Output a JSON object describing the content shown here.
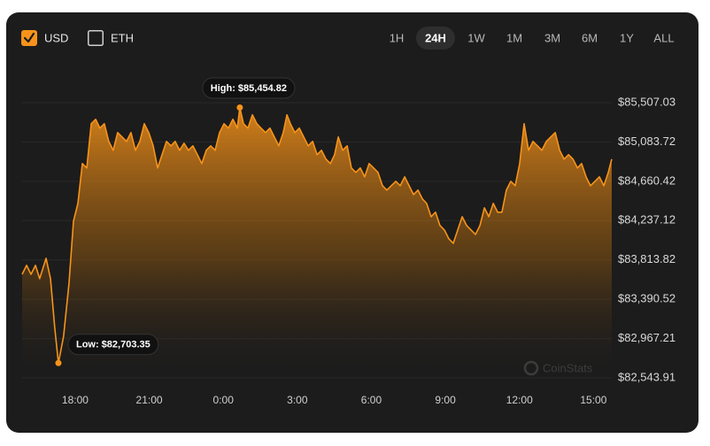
{
  "toggles": [
    {
      "label": "USD",
      "checked": true
    },
    {
      "label": "ETH",
      "checked": false
    }
  ],
  "ranges": [
    "1H",
    "24H",
    "1W",
    "1M",
    "3M",
    "6M",
    "1Y",
    "ALL"
  ],
  "active_range": 1,
  "watermark": "CoinStats",
  "chart_data": {
    "type": "area",
    "color": "#f7931a",
    "grid": true,
    "x": [
      15.85,
      16.03,
      16.21,
      16.39,
      16.56,
      16.82,
      17.0,
      17.17,
      17.32,
      17.53,
      17.75,
      17.93,
      18.11,
      18.29,
      18.47,
      18.65,
      18.83,
      19.0,
      19.18,
      19.36,
      19.54,
      19.72,
      19.9,
      20.08,
      20.26,
      20.44,
      20.62,
      20.8,
      20.98,
      21.16,
      21.34,
      21.52,
      21.7,
      21.88,
      22.05,
      22.23,
      22.41,
      22.59,
      22.77,
      22.95,
      23.13,
      23.31,
      23.49,
      23.67,
      23.85,
      24.03,
      24.21,
      24.39,
      24.57,
      24.67,
      24.82,
      25.0,
      25.18,
      25.36,
      25.53,
      25.71,
      25.89,
      26.07,
      26.25,
      26.43,
      26.58,
      26.72,
      26.9,
      27.08,
      27.26,
      27.44,
      27.62,
      27.8,
      27.98,
      28.16,
      28.34,
      28.51,
      28.66,
      28.84,
      29.02,
      29.19,
      29.37,
      29.55,
      29.73,
      29.91,
      30.09,
      30.27,
      30.45,
      30.63,
      30.81,
      30.99,
      31.17,
      31.35,
      31.53,
      31.71,
      31.89,
      32.07,
      32.24,
      32.42,
      32.6,
      32.78,
      32.96,
      33.14,
      33.32,
      33.5,
      33.68,
      33.86,
      34.04,
      34.22,
      34.4,
      34.58,
      34.76,
      34.94,
      35.12,
      35.29,
      35.47,
      35.65,
      35.83,
      36.01,
      36.19,
      36.37,
      36.55,
      36.73,
      36.91,
      37.09,
      37.27,
      37.45,
      37.63,
      37.81,
      37.99,
      38.17,
      38.35,
      38.52,
      38.7,
      38.88,
      39.06,
      39.24,
      39.42,
      39.6,
      39.74
    ],
    "values": [
      83659,
      83755,
      83659,
      83755,
      83612,
      83831,
      83612,
      83087,
      82703.35,
      82992,
      83564,
      84231,
      84422,
      84851,
      84804,
      85280,
      85328,
      85233,
      85280,
      85090,
      84994,
      85185,
      85137,
      85090,
      85185,
      84994,
      85090,
      85280,
      85185,
      85042,
      84804,
      84947,
      85090,
      85042,
      85090,
      84994,
      85070,
      84994,
      85042,
      84947,
      84851,
      84994,
      85042,
      84994,
      85185,
      85280,
      85233,
      85328,
      85233,
      85454.82,
      85280,
      85233,
      85376,
      85280,
      85233,
      85185,
      85233,
      85137,
      85042,
      85185,
      85376,
      85280,
      85185,
      85233,
      85137,
      85042,
      85090,
      84947,
      84994,
      84899,
      84851,
      84947,
      85137,
      84994,
      85042,
      84804,
      84756,
      84804,
      84708,
      84851,
      84804,
      84756,
      84613,
      84565,
      84613,
      84660,
      84613,
      84708,
      84613,
      84517,
      84565,
      84470,
      84422,
      84279,
      84327,
      84184,
      84136,
      84041,
      83993,
      84136,
      84279,
      84184,
      84136,
      84088,
      84184,
      84374,
      84279,
      84422,
      84327,
      84327,
      84565,
      84660,
      84613,
      84851,
      85280,
      84994,
      85090,
      85042,
      84994,
      85090,
      85137,
      85185,
      84994,
      84899,
      84947,
      84899,
      84804,
      84851,
      84708,
      84613,
      84660,
      84708,
      84613,
      84756,
      84899
    ],
    "xlim": [
      15.85,
      39.74
    ],
    "xticks": [
      {
        "value": 18,
        "label": "18:00"
      },
      {
        "value": 21,
        "label": "21:00"
      },
      {
        "value": 24,
        "label": "0:00"
      },
      {
        "value": 27,
        "label": "3:00"
      },
      {
        "value": 30,
        "label": "6:00"
      },
      {
        "value": 33,
        "label": "9:00"
      },
      {
        "value": 36,
        "label": "12:00"
      },
      {
        "value": 39,
        "label": "15:00"
      }
    ],
    "ylim": [
      82543.91,
      85507.03
    ],
    "yticks": [
      {
        "value": 85507.03,
        "label": "$85,507.03"
      },
      {
        "value": 85083.72,
        "label": "$85,083.72"
      },
      {
        "value": 84660.42,
        "label": "$84,660.42"
      },
      {
        "value": 84237.12,
        "label": "$84,237.12"
      },
      {
        "value": 83813.82,
        "label": "$83,813.82"
      },
      {
        "value": 83390.52,
        "label": "$83,390.52"
      },
      {
        "value": 82967.21,
        "label": "$82,967.21"
      },
      {
        "value": 82543.91,
        "label": "$82,543.91"
      }
    ],
    "annotations": [
      {
        "text": "High: $85,454.82",
        "x": 24.67,
        "y": 85454.82
      },
      {
        "text": "Low: $82,703.35",
        "x": 17.32,
        "y": 82703.35
      }
    ]
  }
}
